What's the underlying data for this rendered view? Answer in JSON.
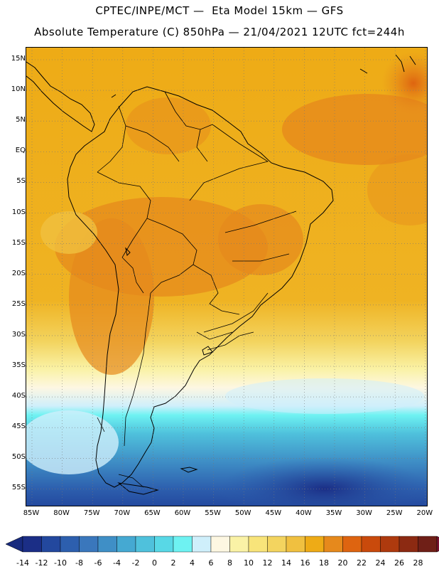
{
  "header": {
    "title_line1": "CPTEC/INPE/MCT —  Eta Model 15km — GFS",
    "title_line2": "Absolute Temperature (C) 850hPa — 21/04/2021 12UTC fct=244h"
  },
  "map": {
    "lat_labels": [
      "15N",
      "10N",
      "5N",
      "EQ",
      "5S",
      "10S",
      "15S",
      "20S",
      "25S",
      "30S",
      "35S",
      "40S",
      "45S",
      "50S",
      "55S"
    ],
    "lon_labels": [
      "85W",
      "80W",
      "75W",
      "70W",
      "65W",
      "60W",
      "55W",
      "50W",
      "45W",
      "40W",
      "35W",
      "30W",
      "25W",
      "20W"
    ]
  },
  "colorbar": {
    "labels": [
      "-14",
      "-12",
      "-10",
      "-8",
      "-6",
      "-4",
      "-2",
      "0",
      "2",
      "4",
      "6",
      "8",
      "10",
      "12",
      "14",
      "16",
      "18",
      "20",
      "22",
      "24",
      "26",
      "28"
    ],
    "colors": [
      "#1b2e86",
      "#23489e",
      "#2d5fae",
      "#3a77bc",
      "#3f8fc6",
      "#45a9d2",
      "#4fc1dc",
      "#58d8e6",
      "#6ef2f2",
      "#cfeffb",
      "#fdf7e2",
      "#faf2a6",
      "#f8e47a",
      "#f3d45f",
      "#f0c040",
      "#eeab16",
      "#e6891c",
      "#de6410",
      "#c94a0c",
      "#ae3a0e",
      "#8c2a12",
      "#6f1f17"
    ],
    "under_color": "#172a7e",
    "over_color": "#7a1230"
  }
}
